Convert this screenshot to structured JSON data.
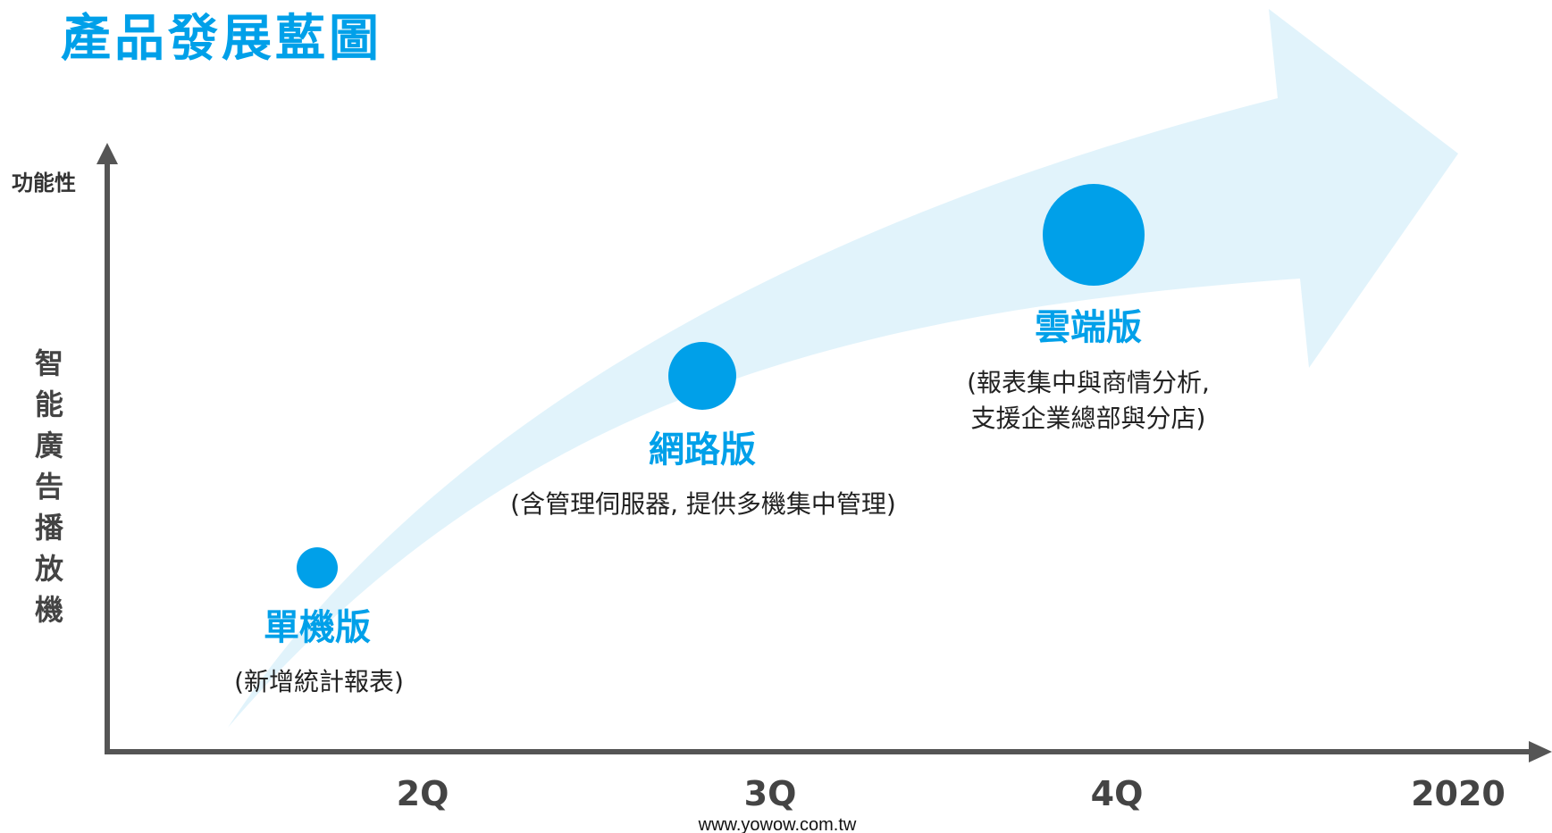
{
  "title": "產品發展藍圖",
  "y_axis": {
    "top_label": "功能性",
    "side_label": [
      "智",
      "能",
      "廣",
      "告",
      "播",
      "放",
      "機"
    ]
  },
  "x_axis": {
    "ticks": [
      "2Q",
      "3Q",
      "4Q",
      "2020"
    ]
  },
  "stages": [
    {
      "name": "單機版",
      "desc": [
        "(新增統計報表)"
      ]
    },
    {
      "name": "網路版",
      "desc": [
        "(含管理伺服器, 提供多機集中管理)"
      ]
    },
    {
      "name": "雲端版",
      "desc": [
        "(報表集中與商情分析,",
        "支援企業總部與分店)"
      ]
    }
  ],
  "footer": "www.yowow.com.tw",
  "colors": {
    "accent": "#00a0e9",
    "arrow_fill": "#e1f3fb",
    "axis": "#555555",
    "label": "#444444",
    "text": "#222222"
  }
}
